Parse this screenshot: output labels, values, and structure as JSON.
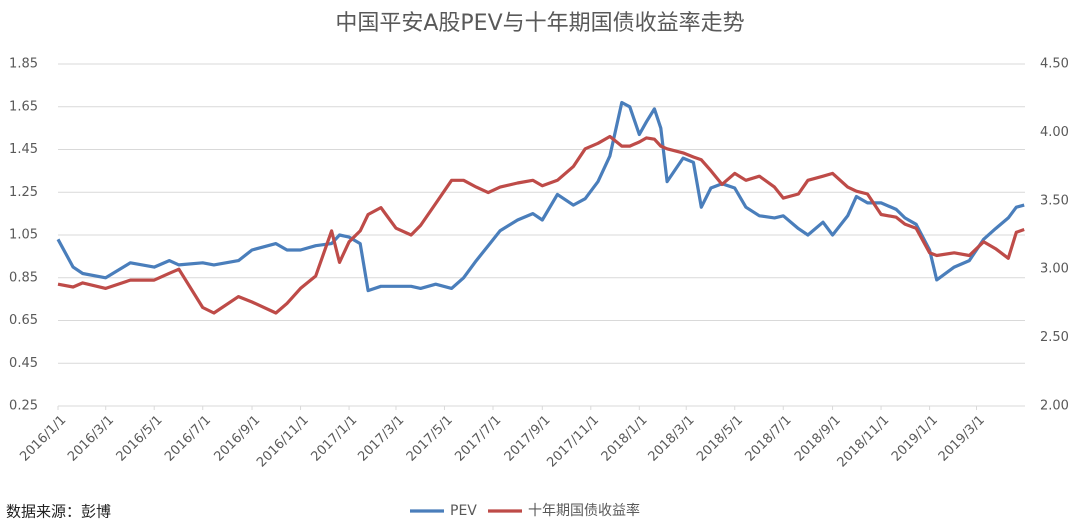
{
  "chart_data": {
    "type": "line",
    "title": "中国平安A股PEV与十年期国债收益率走势",
    "source": "数据来源：彭博",
    "x": [
      "2016/1/1",
      "2016/1/20",
      "2016/2/1",
      "2016/3/1",
      "2016/4/1",
      "2016/5/1",
      "2016/5/20",
      "2016/6/1",
      "2016/7/1",
      "2016/7/15",
      "2016/8/15",
      "2016/9/1",
      "2016/10/1",
      "2016/10/15",
      "2016/11/1",
      "2016/11/20",
      "2016/12/10",
      "2016/12/20",
      "2017/1/1",
      "2017/1/15",
      "2017/1/25",
      "2017/2/10",
      "2017/3/1",
      "2017/3/20",
      "2017/4/1",
      "2017/4/20",
      "2017/5/10",
      "2017/5/25",
      "2017/6/10",
      "2017/6/25",
      "2017/7/10",
      "2017/8/1",
      "2017/8/20",
      "2017/9/1",
      "2017/9/20",
      "2017/10/10",
      "2017/10/25",
      "2017/11/10",
      "2017/11/25",
      "2017/12/10",
      "2017/12/20",
      "2018/1/1",
      "2018/1/10",
      "2018/1/20",
      "2018/1/28",
      "2018/2/5",
      "2018/2/25",
      "2018/3/10",
      "2018/3/20",
      "2018/4/1",
      "2018/4/15",
      "2018/5/1",
      "2018/5/15",
      "2018/6/1",
      "2018/6/20",
      "2018/7/1",
      "2018/7/20",
      "2018/8/1",
      "2018/8/20",
      "2018/9/1",
      "2018/9/20",
      "2018/10/1",
      "2018/10/15",
      "2018/11/1",
      "2018/11/20",
      "2018/12/1",
      "2018/12/15",
      "2019/1/1",
      "2019/1/10",
      "2019/2/1",
      "2019/2/20",
      "2019/3/10",
      "2019/3/25",
      "2019/4/10",
      "2019/4/20",
      "2019/4/30"
    ],
    "series": [
      {
        "name": "PEV",
        "color": "#4a7ebb",
        "axis": "y",
        "values": [
          1.03,
          0.9,
          0.87,
          0.85,
          0.92,
          0.9,
          0.93,
          0.91,
          0.92,
          0.91,
          0.93,
          0.98,
          1.01,
          0.98,
          0.98,
          1.0,
          1.01,
          1.05,
          1.04,
          1.01,
          0.79,
          0.81,
          0.81,
          0.81,
          0.8,
          0.82,
          0.8,
          0.85,
          0.93,
          1.0,
          1.07,
          1.12,
          1.15,
          1.12,
          1.24,
          1.19,
          1.22,
          1.3,
          1.42,
          1.67,
          1.65,
          1.52,
          1.58,
          1.64,
          1.55,
          1.3,
          1.41,
          1.39,
          1.18,
          1.27,
          1.29,
          1.27,
          1.18,
          1.14,
          1.13,
          1.14,
          1.08,
          1.05,
          1.11,
          1.05,
          1.14,
          1.23,
          1.2,
          1.2,
          1.17,
          1.13,
          1.1,
          0.98,
          0.84,
          0.9,
          0.93,
          1.03,
          1.08,
          1.13,
          1.18,
          1.19
        ]
      },
      {
        "name": "十年期国债收益率",
        "color": "#be4b48",
        "axis": "y2",
        "values": [
          2.89,
          2.87,
          2.9,
          2.86,
          2.92,
          2.92,
          2.97,
          3.0,
          2.72,
          2.68,
          2.8,
          2.76,
          2.68,
          2.75,
          2.86,
          2.95,
          3.28,
          3.05,
          3.2,
          3.28,
          3.4,
          3.45,
          3.3,
          3.25,
          3.32,
          3.48,
          3.65,
          3.65,
          3.6,
          3.56,
          3.6,
          3.63,
          3.65,
          3.61,
          3.65,
          3.75,
          3.88,
          3.92,
          3.97,
          3.9,
          3.9,
          3.93,
          3.96,
          3.95,
          3.9,
          3.88,
          3.85,
          3.82,
          3.8,
          3.72,
          3.62,
          3.7,
          3.65,
          3.68,
          3.6,
          3.52,
          3.55,
          3.65,
          3.68,
          3.7,
          3.6,
          3.57,
          3.55,
          3.4,
          3.38,
          3.33,
          3.3,
          3.12,
          3.1,
          3.12,
          3.1,
          3.2,
          3.15,
          3.08,
          3.27,
          3.29
        ]
      }
    ],
    "xlim": [
      "2016/1/1",
      "2019/5/1"
    ],
    "xticks": [
      "2016/1/1",
      "2016/3/1",
      "2016/5/1",
      "2016/7/1",
      "2016/9/1",
      "2016/11/1",
      "2017/1/1",
      "2017/3/1",
      "2017/5/1",
      "2017/7/1",
      "2017/9/1",
      "2017/11/1",
      "2018/1/1",
      "2018/3/1",
      "2018/5/1",
      "2018/7/1",
      "2018/9/1",
      "2018/11/1",
      "2019/1/1",
      "2019/3/1"
    ],
    "ylim": [
      0.25,
      1.85
    ],
    "yticks": [
      0.25,
      0.45,
      0.65,
      0.85,
      1.05,
      1.25,
      1.45,
      1.65,
      1.85
    ],
    "y2lim": [
      2.0,
      4.5
    ],
    "y2ticks": [
      {
        "value": 2.0,
        "label": "2.00"
      },
      {
        "value": 2.5,
        "label": "2.50"
      },
      {
        "value": 3.0,
        "label": "3.00"
      },
      {
        "value": 3.5,
        "label": "3.50"
      },
      {
        "value": 4.0,
        "label": "4.00"
      },
      {
        "value": 4.5,
        "label": "4.50"
      }
    ],
    "grid": true,
    "legend": "bottom"
  }
}
